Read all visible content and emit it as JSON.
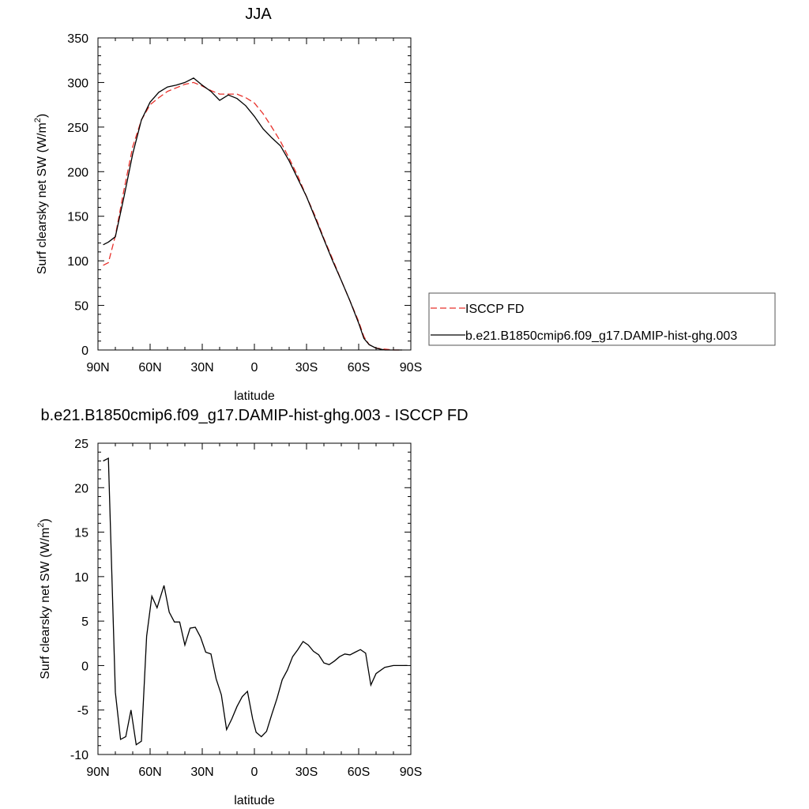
{
  "chart_data": [
    {
      "type": "line",
      "title": "JJA",
      "xlabel": "latitude",
      "ylabel": "Surf clearsky net SW (W/m",
      "ylabel_sup": "2",
      "ylabel_end": ")",
      "xlim": [
        90,
        -90
      ],
      "ylim": [
        0,
        350
      ],
      "x_ticks": [
        90,
        60,
        30,
        0,
        -30,
        -60,
        -90
      ],
      "x_tick_labels": [
        "90N",
        "60N",
        "30N",
        "0",
        "30S",
        "60S",
        "90S"
      ],
      "y_ticks": [
        0,
        50,
        100,
        150,
        200,
        250,
        300,
        350
      ],
      "y_tick_labels": [
        "0",
        "50",
        "100",
        "150",
        "200",
        "250",
        "300",
        "350"
      ],
      "grid": false,
      "legend_position": "right",
      "series": [
        {
          "name": "ISCCP FD",
          "color": "#e8302a",
          "dash": true,
          "x": [
            87,
            84,
            80,
            75,
            70,
            65,
            60,
            55,
            50,
            45,
            40,
            35,
            30,
            25,
            20,
            15,
            10,
            5,
            0,
            -5,
            -10,
            -15,
            -20,
            -25,
            -30,
            -35,
            -40,
            -45,
            -50,
            -55,
            -60,
            -63,
            -66,
            -70,
            -75,
            -80,
            -85
          ],
          "y": [
            95,
            98,
            128,
            180,
            228,
            258,
            275,
            283,
            290,
            294,
            298,
            300,
            296,
            291,
            287,
            287,
            287,
            283,
            277,
            265,
            250,
            234,
            215,
            195,
            172,
            150,
            125,
            102,
            78,
            55,
            32,
            15,
            6,
            2,
            1,
            0,
            0
          ]
        },
        {
          "name": "b.e21.B1850cmip6.f09_g17.DAMIP-hist-ghg.003",
          "color": "#000000",
          "dash": false,
          "x": [
            87,
            84,
            80,
            75,
            70,
            65,
            60,
            55,
            50,
            45,
            40,
            35,
            30,
            25,
            20,
            15,
            10,
            5,
            0,
            -5,
            -10,
            -15,
            -20,
            -25,
            -30,
            -35,
            -40,
            -45,
            -50,
            -55,
            -60,
            -63,
            -66,
            -70,
            -75,
            -80,
            -85
          ],
          "y": [
            118,
            121,
            127,
            172,
            220,
            258,
            278,
            289,
            295,
            297,
            300,
            305,
            297,
            290,
            280,
            286,
            282,
            274,
            262,
            248,
            238,
            229,
            212,
            192,
            172,
            148,
            124,
            100,
            78,
            55,
            30,
            13,
            6,
            2,
            0,
            0,
            0
          ]
        }
      ]
    },
    {
      "type": "line",
      "title": "b.e21.B1850cmip6.f09_g17.DAMIP-hist-ghg.003 - ISCCP FD",
      "xlabel": "latitude",
      "ylabel": "Surf clearsky net SW (W/m",
      "ylabel_sup": "2",
      "ylabel_end": ")",
      "xlim": [
        90,
        -90
      ],
      "ylim": [
        -10,
        25
      ],
      "x_ticks": [
        90,
        60,
        30,
        0,
        -30,
        -60,
        -90
      ],
      "x_tick_labels": [
        "90N",
        "60N",
        "30N",
        "0",
        "30S",
        "60S",
        "90S"
      ],
      "y_ticks": [
        -10,
        -5,
        0,
        5,
        10,
        15,
        20,
        25
      ],
      "y_tick_labels": [
        "-10",
        "-5",
        "0",
        "5",
        "10",
        "15",
        "20",
        "25"
      ],
      "grid": false,
      "series": [
        {
          "name": "",
          "color": "#000000",
          "dash": false,
          "x": [
            87,
            84,
            80,
            77,
            74,
            71,
            68,
            65,
            62,
            59,
            56,
            52,
            49,
            46,
            43,
            40,
            37,
            34,
            31,
            28,
            25,
            22,
            19,
            16,
            13,
            10,
            7,
            4,
            1,
            -1,
            -4,
            -7,
            -10,
            -13,
            -16,
            -19,
            -22,
            -25,
            -28,
            -31,
            -34,
            -37,
            -40,
            -43,
            -46,
            -49,
            -52,
            -55,
            -58,
            -61,
            -64,
            -67,
            -70,
            -75,
            -80,
            -85,
            -88
          ],
          "y": [
            23,
            23.3,
            -3,
            -8.3,
            -8,
            -5,
            -8.9,
            -8.5,
            3.3,
            7.8,
            6.5,
            9,
            6,
            4.9,
            4.9,
            2.3,
            4.2,
            4.3,
            3.2,
            1.5,
            1.3,
            -1.5,
            -3.3,
            -7.2,
            -6,
            -4.6,
            -3.5,
            -2.9,
            -6,
            -7.5,
            -8,
            -7.4,
            -5.5,
            -3.7,
            -1.6,
            -0.5,
            1,
            1.8,
            2.7,
            2.3,
            1.6,
            1.2,
            0.3,
            0.1,
            0.5,
            1,
            1.3,
            1.2,
            1.5,
            1.8,
            1.4,
            -2.2,
            -0.9,
            -0.2,
            0,
            0,
            0
          ]
        }
      ]
    }
  ]
}
